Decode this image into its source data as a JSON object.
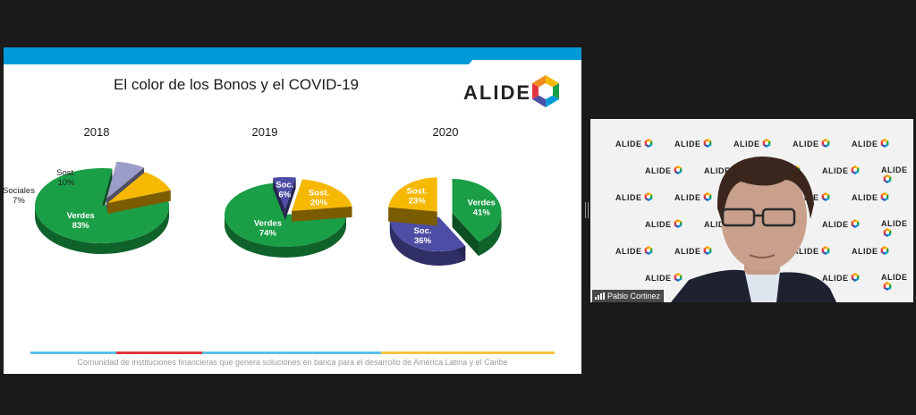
{
  "slide": {
    "title": "El color de los Bonos y el COVID-19",
    "logo_text": "ALIDE",
    "footer": "Comunidad de instituciones financieras que genera soluciones en banca para el desarrollo de América Latina y el Caribe"
  },
  "colors": {
    "verdes": "#1a9e46",
    "sociales": "#4d4da6",
    "sociales_2018": "#9c9cc9",
    "sostenibles": "#f6b800",
    "topbar": "#0099d8"
  },
  "chart_data": [
    {
      "type": "pie",
      "title": "2018",
      "slices": [
        {
          "label": "Verdes",
          "value": 83,
          "display": "83%"
        },
        {
          "label": "Sociales",
          "value": 7,
          "display": "7%"
        },
        {
          "label": "Sost.",
          "value": 10,
          "display": "10%"
        }
      ]
    },
    {
      "type": "pie",
      "title": "2019",
      "slices": [
        {
          "label": "Verdes",
          "value": 74,
          "display": "74%"
        },
        {
          "label": "Soc.",
          "value": 6,
          "display": "6%"
        },
        {
          "label": "Sost.",
          "value": 20,
          "display": "20%"
        }
      ]
    },
    {
      "type": "pie",
      "title": "2020",
      "slices": [
        {
          "label": "Verdes",
          "value": 41,
          "display": "41%"
        },
        {
          "label": "Soc.",
          "value": 36,
          "display": "36%"
        },
        {
          "label": "Sost.",
          "value": 23,
          "display": "23%"
        }
      ]
    }
  ],
  "video": {
    "participant_name": "Pablo Cortinez",
    "backdrop_logo": "ALIDE"
  }
}
